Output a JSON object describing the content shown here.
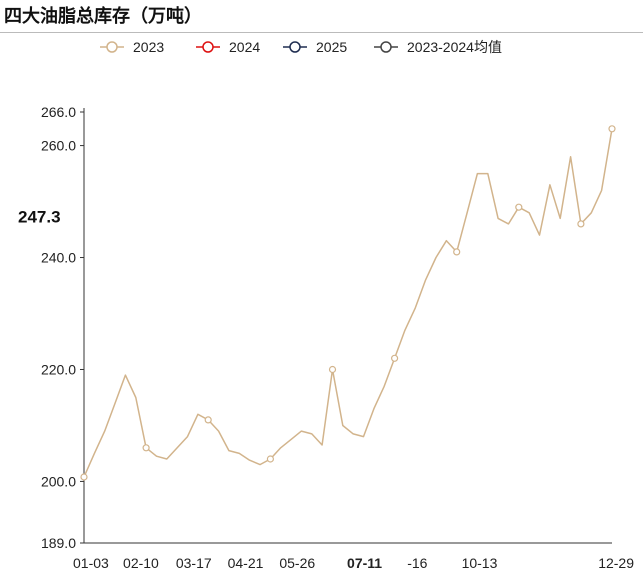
{
  "page": {
    "title": "四大油脂总库存（万吨）"
  },
  "chart_data": {
    "type": "line",
    "title": "四大油脂总库存（万吨）",
    "xlabel": "",
    "ylabel": "",
    "x_ticks": [
      "01-03",
      "02-10",
      "03-17",
      "04-21",
      "05-26",
      "07-11",
      "-16",
      "10-13",
      "12-29"
    ],
    "y_ticks": [
      "189.0",
      "200.0",
      "220.0",
      "240.0",
      "260.0",
      "266.0"
    ],
    "ylim": [
      189,
      266
    ],
    "n_weeks": 52,
    "highlight": {
      "label": "07-11",
      "value_label": "247.3"
    },
    "legend_position": "top",
    "grid": false,
    "series": [
      {
        "name": "2023",
        "color": "#d2b48c",
        "width": 1.5,
        "dash": "",
        "marker": "circle",
        "marker_every": 6,
        "marker_offset": 0,
        "values": [
          200.8,
          205.0,
          209.0,
          214.0,
          219.0,
          215.0,
          206.0,
          204.5,
          204.0,
          206.0,
          208.0,
          212.0,
          211.0,
          209.0,
          205.5,
          205.0,
          203.8,
          203.0,
          204.0,
          206.0,
          207.5,
          209.0,
          208.5,
          206.5,
          220.0,
          210.0,
          208.5,
          208.0,
          213.0,
          217.0,
          222.0,
          227.0,
          231.0,
          236.0,
          240.0,
          243.0,
          241.0,
          248.0,
          255.0,
          255.0,
          247.0,
          246.0,
          249.0,
          248.0,
          244.0,
          253.0,
          247.0,
          258.0,
          246.0,
          248.0,
          252.0,
          263.0
        ]
      }
    ]
  }
}
